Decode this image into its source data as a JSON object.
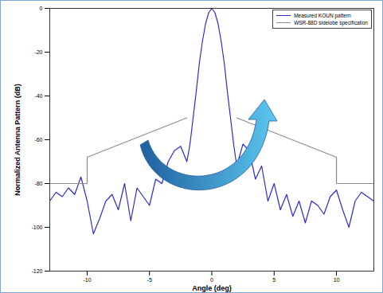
{
  "chart_data": {
    "type": "line",
    "x_label": "Angle (deg)",
    "y_label": "Normalized Antenna Pattern (dB)",
    "xlim": [
      -13,
      13
    ],
    "xticks": [
      -10,
      -5,
      0,
      5,
      10
    ],
    "ylim": [
      -120,
      0
    ],
    "yticks": [
      -120,
      -100,
      -80,
      -60,
      -40,
      -20,
      0
    ],
    "grid": false,
    "legend": "top-right",
    "series": [
      {
        "name": "Measured KOUN pattern",
        "color": "#2b2bd6",
        "line_style": "solid",
        "x": [
          -13,
          -12.5,
          -12,
          -11.5,
          -11,
          -10.5,
          -10,
          -9.5,
          -9,
          -8.5,
          -8,
          -7.5,
          -7,
          -6.5,
          -6,
          -5.5,
          -5,
          -4.5,
          -4,
          -3.5,
          -3,
          -2.5,
          -2,
          -1.75,
          -1.5,
          -1.25,
          -1,
          -0.75,
          -0.5,
          -0.25,
          0,
          0.25,
          0.5,
          0.75,
          1,
          1.25,
          1.5,
          1.75,
          2,
          2.5,
          3,
          3.5,
          4,
          4.5,
          5,
          5.5,
          6,
          6.5,
          7,
          7.5,
          8,
          8.5,
          9,
          9.5,
          10,
          10.5,
          11,
          11.5,
          12,
          12.5,
          13
        ],
        "values": [
          -88,
          -84,
          -86,
          -82,
          -85,
          -77,
          -88,
          -103,
          -96,
          -88,
          -85,
          -92,
          -80,
          -97,
          -82,
          -86,
          -90,
          -78,
          -80,
          -70,
          -65,
          -63,
          -70,
          -62,
          -50,
          -38,
          -25,
          -15,
          -7,
          -2,
          0,
          -2,
          -7,
          -15,
          -25,
          -38,
          -50,
          -62,
          -72,
          -62,
          -65,
          -78,
          -72,
          -88,
          -80,
          -92,
          -85,
          -95,
          -88,
          -98,
          -88,
          -90,
          -94,
          -86,
          -83,
          -92,
          -100,
          -88,
          -84,
          -86,
          -88
        ]
      },
      {
        "name": "WSR-88D sidelobe specification",
        "color": "#8c8c8c",
        "line_style": "solid",
        "x": [
          -13,
          -10,
          -10,
          -2,
          0,
          2,
          10,
          10,
          13
        ],
        "values": [
          -80,
          -80,
          -68,
          -50,
          null,
          -50,
          -68,
          -80,
          -80
        ]
      }
    ]
  }
}
